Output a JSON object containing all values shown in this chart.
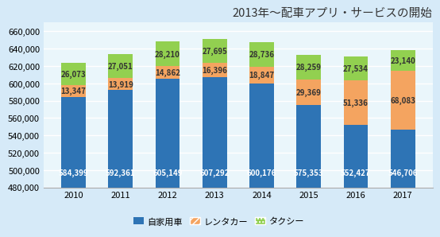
{
  "years": [
    2010,
    2011,
    2012,
    2013,
    2014,
    2015,
    2016,
    2017
  ],
  "jikaYosha": [
    584399,
    592361,
    605149,
    607292,
    600176,
    575353,
    552427,
    546706
  ],
  "rental": [
    13347,
    13919,
    14862,
    16396,
    18847,
    29369,
    51336,
    68083
  ],
  "taxi": [
    26073,
    27051,
    28210,
    27695,
    28736,
    28259,
    27534,
    23140
  ],
  "jikaYosha_color": "#2E74B5",
  "rental_color": "#F4A460",
  "taxi_color": "#92D050",
  "rental_hatch": "////",
  "taxi_hatch": "....",
  "background_color": "#D6EAF8",
  "plot_bg_color": "#EAF6FB",
  "title": "2013年～配車アプリ・サービスの開始",
  "title_fontsize": 10.5,
  "legend_labels": [
    "自家用車",
    "レンタカー",
    "タクシー"
  ],
  "ylim_min": 480000,
  "ylim_max": 670000,
  "ytick_step": 20000,
  "grid_color": "#FFFFFF",
  "bar_label_fontsize": 7,
  "tick_fontsize": 8,
  "legend_fontsize": 8
}
